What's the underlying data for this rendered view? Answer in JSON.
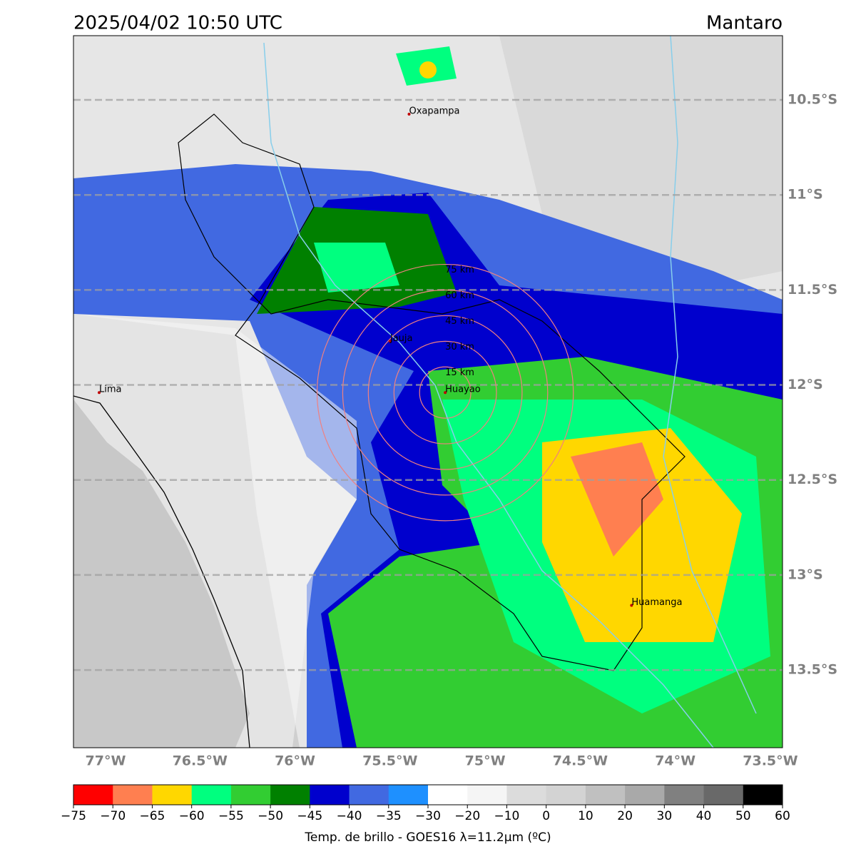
{
  "title": "2025/04/02 10:50 UTC",
  "region": "Mantaro",
  "map": {
    "xlim": [
      -77.165,
      -73.436
    ],
    "ylim": [
      -13.909,
      -10.162
    ],
    "xticks": [
      {
        "value": -77,
        "label": "77°W"
      },
      {
        "value": -76.5,
        "label": "76.5°W"
      },
      {
        "value": -76,
        "label": "76°W"
      },
      {
        "value": -75.5,
        "label": "75.5°W"
      },
      {
        "value": -75,
        "label": "75°W"
      },
      {
        "value": -74.5,
        "label": "74.5°W"
      },
      {
        "value": -74,
        "label": "74°W"
      },
      {
        "value": -73.5,
        "label": "73.5°W"
      }
    ],
    "yticks": [
      {
        "value": -10.5,
        "label": "10.5°S"
      },
      {
        "value": -11,
        "label": "11°S"
      },
      {
        "value": -11.5,
        "label": "11.5°S"
      },
      {
        "value": -12,
        "label": "12°S"
      },
      {
        "value": -12.5,
        "label": "12.5°S"
      },
      {
        "value": -13,
        "label": "13°S"
      },
      {
        "value": -13.5,
        "label": "13.5°S"
      }
    ],
    "grid": true,
    "cities": [
      {
        "name": "Oxapampa",
        "lon": -75.4,
        "lat": -10.575
      },
      {
        "name": "Jauja",
        "lon": -75.5,
        "lat": -11.77
      },
      {
        "name": "Huayao",
        "lon": -75.21,
        "lat": -12.04
      },
      {
        "name": "Lima",
        "lon": -77.03,
        "lat": -12.04
      },
      {
        "name": "Huamanga",
        "lon": -74.23,
        "lat": -13.16
      }
    ],
    "rings": [
      {
        "value": 15,
        "label": "15 km"
      },
      {
        "value": 30,
        "label": "30 km"
      },
      {
        "value": 45,
        "label": "45 km"
      },
      {
        "value": 60,
        "label": "60 km"
      },
      {
        "value": 75,
        "label": "75 km"
      }
    ],
    "ring_color": "#f08080"
  },
  "colorbar": {
    "label": "Temp. de brillo - GOES16 λ=11.2μm (ºC)",
    "ticks": [
      {
        "value": -75,
        "label": "−75"
      },
      {
        "value": -70,
        "label": "−70"
      },
      {
        "value": -65,
        "label": "−65"
      },
      {
        "value": -60,
        "label": "−60"
      },
      {
        "value": -55,
        "label": "−55"
      },
      {
        "value": -50,
        "label": "−50"
      },
      {
        "value": -45,
        "label": "−45"
      },
      {
        "value": -40,
        "label": "−40"
      },
      {
        "value": -35,
        "label": "−35"
      },
      {
        "value": -30,
        "label": "−30"
      },
      {
        "value": -20,
        "label": "−20"
      },
      {
        "value": -10,
        "label": "−10"
      },
      0,
      10,
      20,
      30,
      40,
      50,
      60
    ],
    "colors": [
      "#ff0000",
      "#ff7f50",
      "#ffd700",
      "#00ff7f",
      "#32cd32",
      "#008000",
      "#0000cd",
      "#4169e1",
      "#1e90ff",
      "#ffffff",
      "#f5f5f5",
      "#dcdcdc",
      "#d3d3d3",
      "#c0c0c0",
      "#a9a9a9",
      "#808080",
      "#696969",
      "#000000"
    ]
  }
}
